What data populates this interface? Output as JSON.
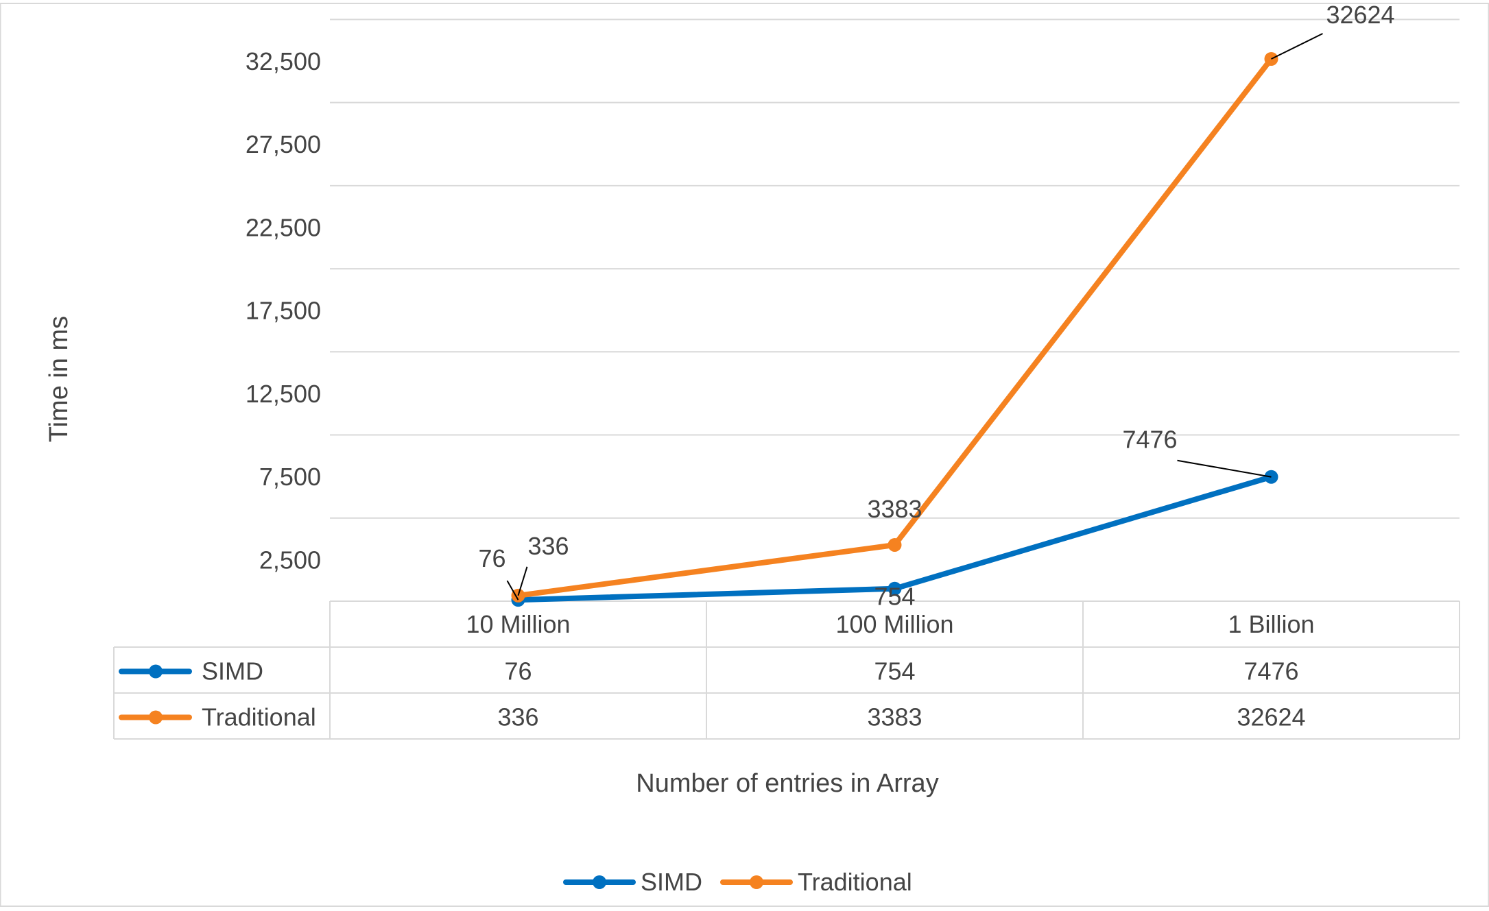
{
  "chart_data": {
    "type": "line",
    "title": "",
    "xlabel": "Number of entries in Array",
    "ylabel": "Time in ms",
    "categories": [
      "10 Million",
      "100 Million",
      "1 Billion"
    ],
    "series": [
      {
        "name": "SIMD",
        "values": [
          76,
          754,
          7476
        ],
        "color": "#0070c0"
      },
      {
        "name": "Traditional",
        "values": [
          336,
          3383,
          32624
        ],
        "color": "#f58220"
      }
    ],
    "y_ticks": [
      2500,
      7500,
      12500,
      17500,
      22500,
      27500,
      32500
    ],
    "y_tick_labels": [
      "2,500",
      "7,500",
      "12,500",
      "17,500",
      "22,500",
      "27,500",
      "32,500"
    ],
    "ylim": [
      0,
      35000
    ],
    "grid": true,
    "legend_position": "bottom",
    "data_table": true
  }
}
